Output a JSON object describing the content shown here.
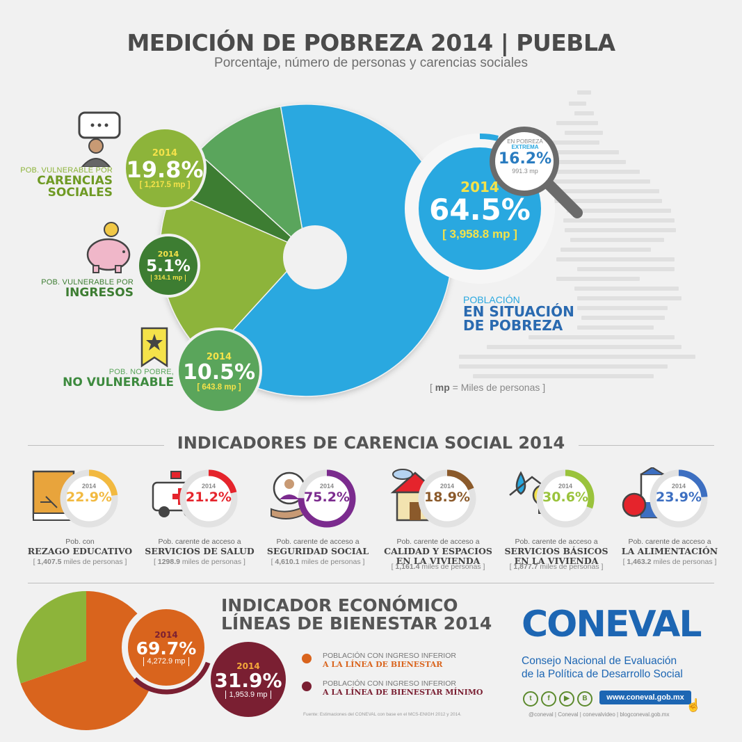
{
  "header": {
    "title": "MEDICIÓN DE POBREZA 2014  |  PUEBLA",
    "subtitle": "Porcentaje, número de personas y carencias sociales"
  },
  "chart_data": [
    {
      "type": "pie",
      "title": "MEDICIÓN DE POBREZA 2014 | PUEBLA",
      "categories": [
        "Población en situación de pobreza",
        "Pob. vulnerable por carencias sociales",
        "Pob. vulnerable por ingresos",
        "Pob. no pobre, no vulnerable"
      ],
      "values": [
        64.5,
        19.8,
        5.1,
        10.5
      ],
      "people_mp": [
        3958.8,
        1217.5,
        314.1,
        643.8
      ],
      "extreme_poverty": {
        "value": 16.2,
        "people_mp": 991.3
      },
      "year": 2014
    },
    {
      "type": "pie",
      "title": "INDICADOR ECONÓMICO LÍNEAS DE BIENESTAR 2014",
      "categories": [
        "Población con ingreso inferior a la línea de bienestar",
        "Población con ingreso inferior a la línea de bienestar mínimo"
      ],
      "values": [
        69.7,
        31.9
      ],
      "people_mp": [
        4272.9,
        1953.9
      ]
    }
  ],
  "pie": {
    "year": "2014",
    "poverty": {
      "pct": "64.5%",
      "mp": "[ 3,958.8 mp ]",
      "label_small": "POBLACIÓN",
      "label_big1": "EN SITUACIÓN",
      "label_big2": "DE POBREZA",
      "color": "#29a8e0"
    },
    "extreme": {
      "label1": "EN POBREZA",
      "label2": "EXTREMA",
      "pct": "16.2%",
      "mp": "991.3 mp"
    },
    "carencias": {
      "pct": "19.8%",
      "mp": "[ 1,217.5 mp ]",
      "label_small": "POB. VULNERABLE POR",
      "label_big1": "CARENCIAS",
      "label_big2": "SOCIALES",
      "color": "#8db43a"
    },
    "ingresos": {
      "pct": "5.1%",
      "mp": "314.1 mp",
      "label_small": "POB. VULNERABLE POR",
      "label_big": "INGRESOS",
      "color": "#3d7d32"
    },
    "novul": {
      "pct": "10.5%",
      "mp": "[ 643.8 mp ]",
      "label_small": "POB. NO POBRE,",
      "label_big": "NO VULNERABLE",
      "color": "#5aa55b"
    },
    "mp_note_key": "mp",
    "mp_note_rest": " = Miles de personas"
  },
  "indicators": {
    "title": "INDICADORES DE CARENCIA SOCIAL 2014",
    "year": "2014",
    "items": [
      {
        "pct": "22.9%",
        "value": 22.9,
        "color": "#f2b940",
        "small": "Pob. con",
        "big1": "REZAGO EDUCATIVO",
        "big2": "",
        "mp_num": "1,407.5",
        "mp_rest": " miles de personas"
      },
      {
        "pct": "21.2%",
        "value": 21.2,
        "color": "#e5242c",
        "small": "Pob. carente de acceso a",
        "big1": "SERVICIOS DE SALUD",
        "big2": "",
        "mp_num": "1298.9",
        "mp_rest": " miles de personas"
      },
      {
        "pct": "75.2%",
        "value": 75.2,
        "color": "#7b2b8e",
        "small": "Pob. carente de acceso a",
        "big1": "SEGURIDAD SOCIAL",
        "big2": "",
        "mp_num": "4,610.1",
        "mp_rest": " miles de personas"
      },
      {
        "pct": "18.9%",
        "value": 18.9,
        "color": "#8b5a2b",
        "small": "Pob. carente de acceso a",
        "big1": "CALIDAD Y ESPACIOS",
        "big2": "EN LA VIVIENDA",
        "mp_num": "1,161.4",
        "mp_rest": " miles de personas"
      },
      {
        "pct": "30.6%",
        "value": 30.6,
        "color": "#9ac33c",
        "small": "Pob. carente de acceso a",
        "big1": "SERVICIOS BÁSICOS",
        "big2": "EN LA VIVIENDA",
        "mp_num": "1,877.7",
        "mp_rest": " miles de personas"
      },
      {
        "pct": "23.9%",
        "value": 23.9,
        "color": "#3d6fc1",
        "small": "Pob. carente de acceso a",
        "big1": "LA ALIMENTACIÓN",
        "big2": "",
        "mp_num": "1,463.2",
        "mp_rest": " miles de personas"
      }
    ]
  },
  "economic": {
    "title1": "INDICADOR ECONÓMICO",
    "title2": "LÍNEAS DE BIENESTAR 2014",
    "year": "2014",
    "bienestar": {
      "pct": "69.7%",
      "mp": "4,272.9 mp",
      "legend_small": "POBLACIÓN CON INGRESO INFERIOR",
      "legend_big": "A LA LÍNEA DE BIENESTAR",
      "color": "#d9641d"
    },
    "minimo": {
      "pct": "31.9%",
      "mp": "1,953.9 mp",
      "legend_small": "POBLACIÓN CON INGRESO INFERIOR",
      "legend_big": "A LA LÍNEA DE BIENESTAR MÍNIMO",
      "color": "#7a1f32"
    },
    "rest_color": "#8db43a",
    "source": "Fuente: Estimaciones del CONEVAL con base en el MCS-ENIGH 2012 y 2014."
  },
  "coneval": {
    "logo": "CONEVAL",
    "line1": "Consejo Nacional de Evaluación",
    "line2": "de la Política de Desarrollo Social",
    "url": "www.coneval.gob.mx",
    "footer": "@coneval  |  Coneval  |  conevalvideo  |  blogconeval.gob.mx",
    "icons": [
      "twitter-icon",
      "facebook-icon",
      "youtube-icon",
      "blogger-icon"
    ]
  }
}
